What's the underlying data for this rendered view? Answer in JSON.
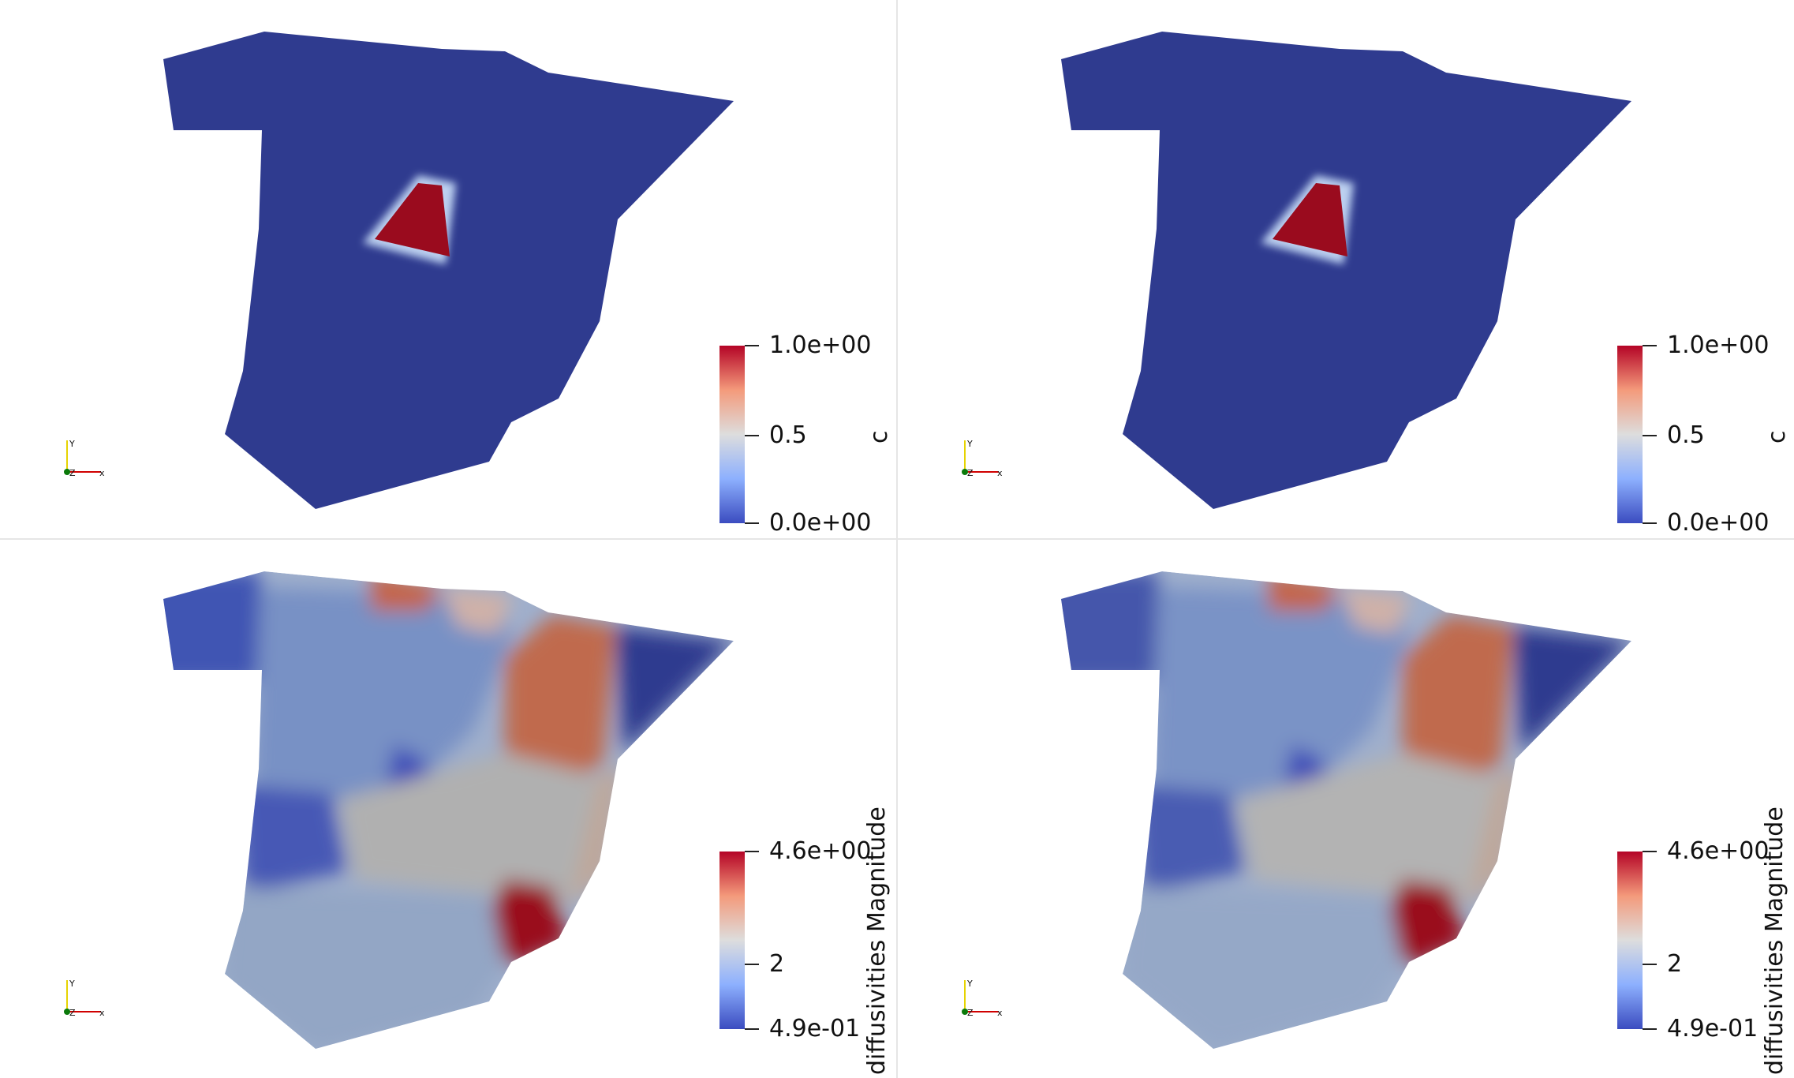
{
  "views": [
    {
      "id": "top-left",
      "field": "c",
      "colorbar": {
        "title": "c",
        "max_label": "1.0e+00",
        "mid_label": "0.5",
        "min_label": "0.0e+00"
      }
    },
    {
      "id": "top-right",
      "field": "c",
      "colorbar": {
        "title": "c",
        "max_label": "1.0e+00",
        "mid_label": "0.5",
        "min_label": "0.0e+00"
      }
    },
    {
      "id": "bottom-left",
      "field": "diffusivities Magnitude",
      "colorbar": {
        "title": "diffusivities Magnitude",
        "max_label": "4.6e+00",
        "mid_label": "2",
        "min_label": "4.9e-01"
      }
    },
    {
      "id": "bottom-right",
      "field": "diffusivities Magnitude",
      "colorbar": {
        "title": "diffusivities Magnitude",
        "max_label": "4.6e+00",
        "mid_label": "2",
        "min_label": "4.9e-01"
      }
    }
  ],
  "axes_labels": {
    "x": "x",
    "y": "Y",
    "z": "Z"
  },
  "colors": {
    "low": "#3b4cc0",
    "mid": "#dddddd",
    "high": "#b40426",
    "domain_fill": "#2f3b8f",
    "hot": "#9a0b1e",
    "divider": "#e6e6e6"
  }
}
